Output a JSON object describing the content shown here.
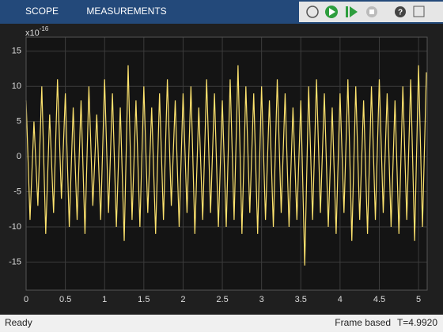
{
  "toolbar": {
    "tabs": [
      "SCOPE",
      "MEASUREMENTS"
    ]
  },
  "status": {
    "left": "Ready",
    "mode": "Frame based",
    "time": "T=4.9920"
  },
  "chart_data": {
    "type": "line",
    "y_exponent_base": "x10",
    "y_exponent": "-16",
    "x": [
      0,
      0.05,
      0.1,
      0.15,
      0.2,
      0.25,
      0.3,
      0.35,
      0.4,
      0.45,
      0.5,
      0.55,
      0.6,
      0.65,
      0.7,
      0.75,
      0.8,
      0.85,
      0.9,
      0.95,
      1,
      1.05,
      1.1,
      1.15,
      1.2,
      1.25,
      1.3,
      1.35,
      1.4,
      1.45,
      1.5,
      1.55,
      1.6,
      1.65,
      1.7,
      1.75,
      1.8,
      1.85,
      1.9,
      1.95,
      2,
      2.05,
      2.1,
      2.15,
      2.2,
      2.25,
      2.3,
      2.35,
      2.4,
      2.45,
      2.5,
      2.55,
      2.6,
      2.65,
      2.7,
      2.75,
      2.8,
      2.85,
      2.9,
      2.95,
      3,
      3.05,
      3.1,
      3.15,
      3.2,
      3.25,
      3.3,
      3.35,
      3.4,
      3.45,
      3.5,
      3.55,
      3.6,
      3.65,
      3.7,
      3.75,
      3.8,
      3.85,
      3.9,
      3.95,
      4,
      4.05,
      4.1,
      4.15,
      4.2,
      4.25,
      4.3,
      4.35,
      4.4,
      4.45,
      4.5,
      4.55,
      4.6,
      4.65,
      4.7,
      4.75,
      4.8,
      4.85,
      4.9,
      4.95,
      5,
      5.05,
      5.1
    ],
    "series": [
      {
        "color": "#fde36e",
        "values": [
          8,
          -9,
          5,
          -7,
          10,
          -11,
          6,
          -8,
          11,
          -6,
          9,
          -10,
          7,
          -9,
          8,
          -11,
          10,
          -7,
          6,
          -9,
          11,
          -8,
          9,
          -10,
          7,
          -12,
          13,
          -9,
          8,
          -10,
          10,
          -8,
          7,
          -11,
          9,
          -9,
          11,
          -7,
          8,
          -10,
          9,
          -8,
          10,
          -11,
          7,
          -9,
          11,
          -8,
          9,
          -10,
          8,
          -10,
          11,
          -9,
          13,
          -11,
          10,
          -8,
          9,
          -11,
          10,
          -9,
          8,
          -10,
          11,
          -8,
          9,
          -10,
          7,
          -9,
          8,
          -15.5,
          10,
          -9,
          11,
          -8,
          9,
          -10,
          7,
          -11,
          9,
          -8,
          11,
          -12,
          10,
          -9,
          8,
          -11,
          10,
          -9,
          11,
          -8,
          9,
          -10,
          8,
          -11,
          10,
          -9,
          11,
          -12,
          13,
          -10,
          12
        ]
      }
    ],
    "xlim": [
      0,
      5.11
    ],
    "ylim": [
      -19,
      17
    ],
    "xticks": [
      0,
      0.5,
      1,
      1.5,
      2,
      2.5,
      3,
      3.5,
      4,
      4.5,
      5
    ],
    "yticks": [
      -15,
      -10,
      -5,
      0,
      5,
      10,
      15
    ],
    "grid": true
  }
}
